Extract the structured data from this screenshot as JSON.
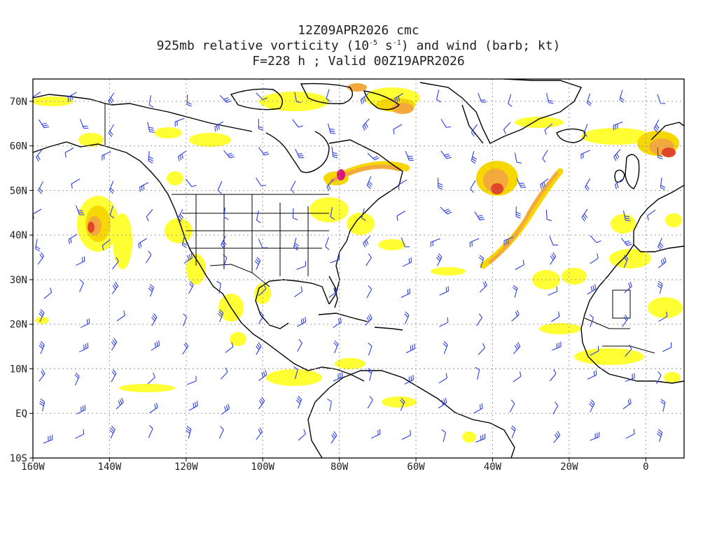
{
  "title": {
    "run": "12Z09APR2026 cmc",
    "field_prefix": "925mb relative vorticity (10",
    "field_exp1": "-5",
    "field_mid": " s",
    "field_exp2": "-1",
    "field_suffix": ") and wind (barb; kt)",
    "valid": "F=228 h ; Valid 00Z19APR2026"
  },
  "map": {
    "lon_range": [
      -160,
      10
    ],
    "lat_range": [
      -10,
      75
    ],
    "lon_ticks": [
      {
        "lon": -160,
        "label": "160W"
      },
      {
        "lon": -140,
        "label": "140W"
      },
      {
        "lon": -120,
        "label": "120W"
      },
      {
        "lon": -100,
        "label": "100W"
      },
      {
        "lon": -80,
        "label": "80W"
      },
      {
        "lon": -60,
        "label": "60W"
      },
      {
        "lon": -40,
        "label": "40W"
      },
      {
        "lon": -20,
        "label": "20W"
      },
      {
        "lon": 0,
        "label": "0"
      }
    ],
    "lat_ticks": [
      {
        "lat": 70,
        "label": "70N"
      },
      {
        "lat": 60,
        "label": "60N"
      },
      {
        "lat": 50,
        "label": "50N"
      },
      {
        "lat": 40,
        "label": "40N"
      },
      {
        "lat": 30,
        "label": "30N"
      },
      {
        "lat": 20,
        "label": "20N"
      },
      {
        "lat": 10,
        "label": "10N"
      },
      {
        "lat": 0,
        "label": "EQ"
      },
      {
        "lat": -10,
        "label": "10S"
      }
    ],
    "colors": {
      "coast": "#000000",
      "barb": "#2a3ee6",
      "grid": "#9a9a9a",
      "v1": "#ffff33",
      "v2": "#f6d800",
      "v3": "#f3a93c",
      "v4": "#e0442a",
      "v5": "#e0137a"
    }
  }
}
